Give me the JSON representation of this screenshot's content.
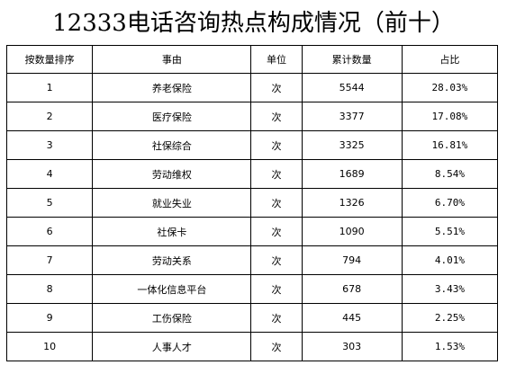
{
  "title": "12333电话咨询热点构成情况（前十）",
  "table": {
    "headers": {
      "rank": "按数量排序",
      "item": "事由",
      "unit": "单位",
      "count": "累计数量",
      "ratio": "占比"
    },
    "rows": [
      {
        "rank": "1",
        "item": "养老保险",
        "unit": "次",
        "count": "5544",
        "ratio": "28.03%"
      },
      {
        "rank": "2",
        "item": "医疗保险",
        "unit": "次",
        "count": "3377",
        "ratio": "17.08%"
      },
      {
        "rank": "3",
        "item": "社保综合",
        "unit": "次",
        "count": "3325",
        "ratio": "16.81%"
      },
      {
        "rank": "4",
        "item": "劳动维权",
        "unit": "次",
        "count": "1689",
        "ratio": "8.54%"
      },
      {
        "rank": "5",
        "item": "就业失业",
        "unit": "次",
        "count": "1326",
        "ratio": "6.70%"
      },
      {
        "rank": "6",
        "item": "社保卡",
        "unit": "次",
        "count": "1090",
        "ratio": "5.51%"
      },
      {
        "rank": "7",
        "item": "劳动关系",
        "unit": "次",
        "count": "794",
        "ratio": "4.01%"
      },
      {
        "rank": "8",
        "item": "一体化信息平台",
        "unit": "次",
        "count": "678",
        "ratio": "3.43%"
      },
      {
        "rank": "9",
        "item": "工伤保险",
        "unit": "次",
        "count": "445",
        "ratio": "2.25%"
      },
      {
        "rank": "10",
        "item": "人事人才",
        "unit": "次",
        "count": "303",
        "ratio": "1.53%"
      }
    ]
  }
}
